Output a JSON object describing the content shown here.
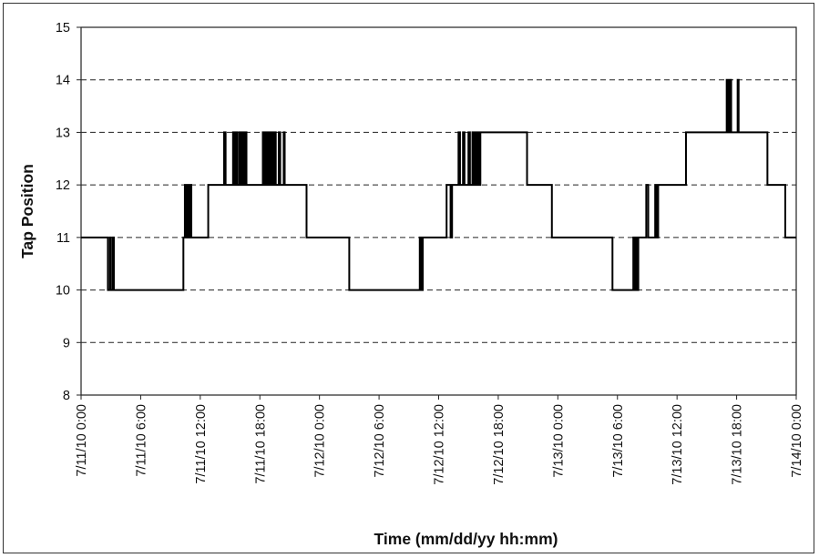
{
  "chart_data": {
    "type": "line",
    "title": "",
    "xlabel": "Time (mm/dd/yy hh:mm)",
    "ylabel": "Tap Position",
    "ylim": [
      8,
      15
    ],
    "yticks": [
      8,
      9,
      10,
      11,
      12,
      13,
      14,
      15
    ],
    "xlim_hours": [
      0,
      72
    ],
    "x_unit": "hours since 7/11/10 0:00",
    "xticks": [
      {
        "hours": 0,
        "label": "7/11/10 0:00"
      },
      {
        "hours": 6,
        "label": "7/11/10 6:00"
      },
      {
        "hours": 12,
        "label": "7/11/10 12:00"
      },
      {
        "hours": 18,
        "label": "7/11/10 18:00"
      },
      {
        "hours": 24,
        "label": "7/12/10 0:00"
      },
      {
        "hours": 30,
        "label": "7/12/10 6:00"
      },
      {
        "hours": 36,
        "label": "7/12/10 12:00"
      },
      {
        "hours": 42,
        "label": "7/12/10 18:00"
      },
      {
        "hours": 48,
        "label": "7/13/10 0:00"
      },
      {
        "hours": 54,
        "label": "7/13/10 6:00"
      },
      {
        "hours": 60,
        "label": "7/13/10 12:00"
      },
      {
        "hours": 66,
        "label": "7/13/10 18:00"
      },
      {
        "hours": 72,
        "label": "7/14/10 0:00"
      }
    ],
    "grid": "horizontal dashed",
    "line_color": "#000000",
    "series": [
      {
        "steps": [
          [
            0,
            11
          ],
          [
            2.7,
            10
          ],
          [
            2.9,
            11
          ],
          [
            3.0,
            10
          ],
          [
            3.2,
            11
          ],
          [
            3.3,
            10
          ],
          [
            10.3,
            11
          ],
          [
            10.45,
            12
          ],
          [
            10.6,
            11
          ],
          [
            10.75,
            12
          ],
          [
            10.9,
            11
          ],
          [
            11.0,
            12
          ],
          [
            11.1,
            11
          ],
          [
            12.8,
            12
          ],
          [
            14.4,
            13
          ],
          [
            14.55,
            12
          ],
          [
            15.3,
            13
          ],
          [
            15.45,
            12
          ],
          [
            15.55,
            13
          ],
          [
            15.7,
            12
          ],
          [
            15.9,
            13
          ],
          [
            16.05,
            12
          ],
          [
            16.2,
            13
          ],
          [
            16.35,
            12
          ],
          [
            16.5,
            13
          ],
          [
            16.65,
            12
          ],
          [
            18.3,
            13
          ],
          [
            18.45,
            12
          ],
          [
            18.6,
            13
          ],
          [
            18.75,
            12
          ],
          [
            18.9,
            13
          ],
          [
            19.05,
            12
          ],
          [
            19.2,
            13
          ],
          [
            19.35,
            12
          ],
          [
            19.5,
            13
          ],
          [
            19.6,
            12
          ],
          [
            19.9,
            13
          ],
          [
            20.05,
            12
          ],
          [
            20.4,
            13
          ],
          [
            20.5,
            12
          ],
          [
            22.7,
            11
          ],
          [
            27.0,
            10
          ],
          [
            34.1,
            11
          ],
          [
            34.25,
            10
          ],
          [
            34.4,
            11
          ],
          [
            36.8,
            12
          ],
          [
            37.2,
            11
          ],
          [
            37.35,
            12
          ],
          [
            38.0,
            13
          ],
          [
            38.15,
            12
          ],
          [
            38.45,
            13
          ],
          [
            38.6,
            12
          ],
          [
            39.0,
            13
          ],
          [
            39.15,
            12
          ],
          [
            39.4,
            13
          ],
          [
            39.5,
            12
          ],
          [
            39.6,
            13
          ],
          [
            39.7,
            12
          ],
          [
            39.8,
            13
          ],
          [
            39.9,
            12
          ],
          [
            40.0,
            13
          ],
          [
            40.1,
            12
          ],
          [
            40.2,
            13
          ],
          [
            44.9,
            12
          ],
          [
            47.4,
            11
          ],
          [
            53.5,
            10
          ],
          [
            55.6,
            11
          ],
          [
            55.75,
            10
          ],
          [
            55.9,
            11
          ],
          [
            56.0,
            10
          ],
          [
            56.1,
            11
          ],
          [
            56.9,
            12
          ],
          [
            57.1,
            11
          ],
          [
            57.8,
            12
          ],
          [
            57.95,
            11
          ],
          [
            58.1,
            12
          ],
          [
            60.9,
            13
          ],
          [
            65.0,
            14
          ],
          [
            65.15,
            13
          ],
          [
            65.3,
            14
          ],
          [
            65.45,
            13
          ],
          [
            66.1,
            14
          ],
          [
            66.2,
            13
          ],
          [
            69.1,
            12
          ],
          [
            70.9,
            11
          ],
          [
            72,
            11
          ]
        ]
      }
    ]
  }
}
